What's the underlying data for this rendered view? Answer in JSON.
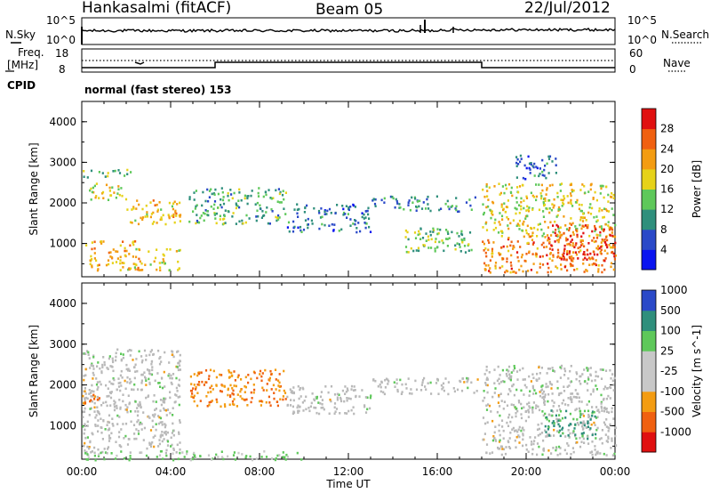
{
  "header": {
    "station": "Hankasalmi (fitACF)",
    "beam": "Beam 05",
    "date": "22/Jul/2012"
  },
  "strip_labels": {
    "nsky": "N.Sky",
    "nsearch": "N.Search",
    "freq_line1": "Freq.",
    "freq_line2": "[MHz]",
    "nave": "Nave",
    "cpid": "CPID",
    "cpid_value": "normal (fast stereo) 153"
  },
  "noise_ticks": {
    "left_top": "10^5",
    "left_bottom": "10^0",
    "right_top": "10^5",
    "right_bottom": "10^0"
  },
  "freq_ticks": {
    "left_top": "18",
    "left_bottom": "8",
    "right_top": "60",
    "right_bottom": "0"
  },
  "colors": {
    "power_scale": [
      "#0a14f0",
      "#2a49c8",
      "#2f8f7c",
      "#5ec85a",
      "#e6d219",
      "#f39c12",
      "#f06010",
      "#e01010"
    ],
    "velocity_scale": [
      "#e01010",
      "#f06010",
      "#f39c12",
      "#c8c8c8",
      "#c8c8c8",
      "#5ec85a",
      "#2f8f7c",
      "#2a49c8"
    ],
    "ground_scatter": "#b9b9b9"
  },
  "chart_data": [
    {
      "type": "heatmap",
      "panel": "power",
      "xlabel": "",
      "ylabel": "Slant Range [km]",
      "ylim": [
        180,
        4500
      ],
      "xlim_hours": [
        0,
        24
      ],
      "yticks": [
        "1000",
        "2000",
        "3000",
        "4000"
      ],
      "colorbar_label": "Power [dB]",
      "colorbar_ticks": [
        "4",
        "8",
        "12",
        "16",
        "20",
        "24",
        "28"
      ],
      "colorbar_range": [
        0,
        32
      ],
      "features": [
        {
          "t": [
            0.0,
            2.3
          ],
          "r": [
            2650,
            2850
          ],
          "value": 14
        },
        {
          "t": [
            0.3,
            2.0
          ],
          "r": [
            2100,
            2500
          ],
          "value": 18
        },
        {
          "t": [
            2.0,
            4.4
          ],
          "r": [
            1500,
            2100
          ],
          "value": 20
        },
        {
          "t": [
            0.0,
            2.4
          ],
          "r": [
            900,
            1100
          ],
          "value": 22
        },
        {
          "t": [
            0.2,
            4.4
          ],
          "r": [
            350,
            900
          ],
          "value": 20
        },
        {
          "t": [
            4.8,
            9.2
          ],
          "r": [
            1500,
            2400
          ],
          "value": 12
        },
        {
          "t": [
            9.2,
            13.0
          ],
          "r": [
            1300,
            2000
          ],
          "value": 8
        },
        {
          "t": [
            13.0,
            17.8
          ],
          "r": [
            1800,
            2200
          ],
          "value": 10
        },
        {
          "t": [
            14.5,
            17.5
          ],
          "r": [
            800,
            1400
          ],
          "value": 14
        },
        {
          "t": [
            18.0,
            24.0
          ],
          "r": [
            1200,
            2500
          ],
          "value": 18
        },
        {
          "t": [
            18.0,
            24.0
          ],
          "r": [
            300,
            1200
          ],
          "value": 24
        },
        {
          "t": [
            21.0,
            24.0
          ],
          "r": [
            600,
            1500
          ],
          "value": 28
        },
        {
          "t": [
            19.5,
            21.4
          ],
          "r": [
            2600,
            3200
          ],
          "value": 8
        }
      ]
    },
    {
      "type": "heatmap",
      "panel": "velocity",
      "xlabel": "Time UT",
      "ylabel": "Slant Range [km]",
      "ylim": [
        180,
        4500
      ],
      "xlim_hours": [
        0,
        24
      ],
      "xticks": [
        "00:00",
        "04:00",
        "08:00",
        "12:00",
        "16:00",
        "20:00",
        "00:00"
      ],
      "yticks": [
        "1000",
        "2000",
        "3000",
        "4000"
      ],
      "colorbar_label": "Velocity [m s^-1]",
      "colorbar_ticks": [
        "-1000",
        "-500",
        "-100",
        "-25",
        "25",
        "100",
        "500",
        "1000"
      ],
      "features": [
        {
          "t": [
            0.0,
            4.4
          ],
          "r": [
            350,
            2900
          ],
          "value": 0,
          "ground_scatter": true
        },
        {
          "t": [
            4.8,
            9.2
          ],
          "r": [
            1500,
            2400
          ],
          "value": -200
        },
        {
          "t": [
            0.0,
            0.8
          ],
          "r": [
            1500,
            1800
          ],
          "value": -300
        },
        {
          "t": [
            9.2,
            13.0
          ],
          "r": [
            1300,
            2000
          ],
          "value": 0,
          "ground_scatter": true
        },
        {
          "t": [
            13.0,
            17.8
          ],
          "r": [
            1800,
            2200
          ],
          "value": 0,
          "ground_scatter": true
        },
        {
          "t": [
            18.0,
            24.0
          ],
          "r": [
            300,
            2500
          ],
          "value": 0,
          "ground_scatter": true
        },
        {
          "t": [
            20.8,
            23.2
          ],
          "r": [
            700,
            1400
          ],
          "value": 300
        },
        {
          "t": [
            0.0,
            10.0
          ],
          "r": [
            180,
            400
          ],
          "value": 80
        }
      ]
    }
  ]
}
